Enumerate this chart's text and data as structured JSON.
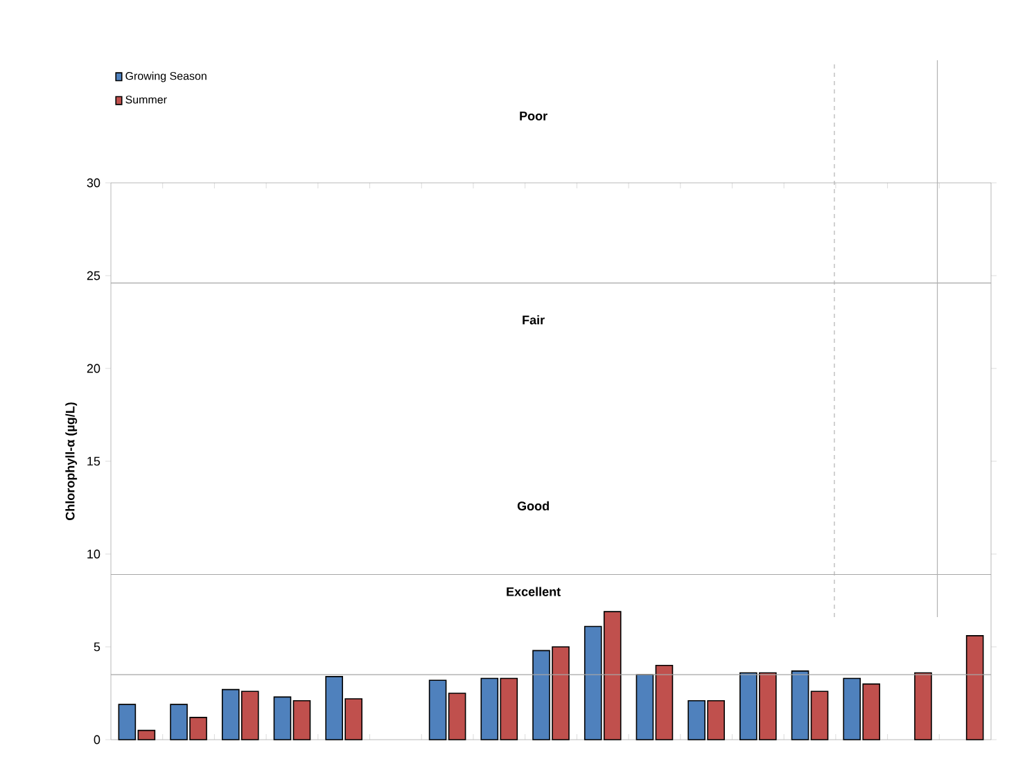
{
  "chart_data": {
    "type": "bar",
    "ylabel": "Chlorophyll-α (µg/L)",
    "categories": [
      null,
      null,
      null,
      null,
      null,
      null,
      null,
      null,
      null,
      null,
      null,
      null,
      null,
      null,
      null,
      null,
      null
    ],
    "series": [
      {
        "name": "Growing Season",
        "color": "#4f81bd",
        "values": [
          1.9,
          1.9,
          2.7,
          2.3,
          3.4,
          null,
          3.2,
          3.3,
          4.8,
          6.1,
          3.5,
          2.1,
          3.6,
          3.7,
          3.3,
          null,
          null
        ]
      },
      {
        "name": "Summer",
        "color": "#c0504d",
        "values": [
          0.5,
          1.2,
          2.6,
          2.1,
          2.2,
          null,
          2.5,
          3.3,
          5.0,
          6.9,
          4.0,
          2.1,
          3.6,
          2.6,
          3.0,
          3.6,
          5.6
        ]
      }
    ],
    "ylim": [
      0,
      30
    ],
    "yticks": [
      0,
      5,
      10,
      15,
      20,
      25,
      30
    ],
    "ref_lines": [
      {
        "axis": "y",
        "value": 3.5,
        "color": "#a6a6a6"
      },
      {
        "axis": "y",
        "value": 8.9,
        "color": "#a6a6a6"
      },
      {
        "axis": "y",
        "value": 24.6,
        "color": "#a6a6a6"
      }
    ],
    "annotations": [
      "Poor",
      "Fair",
      "Good",
      "Excellent"
    ],
    "legend": "top left",
    "grid": false
  }
}
